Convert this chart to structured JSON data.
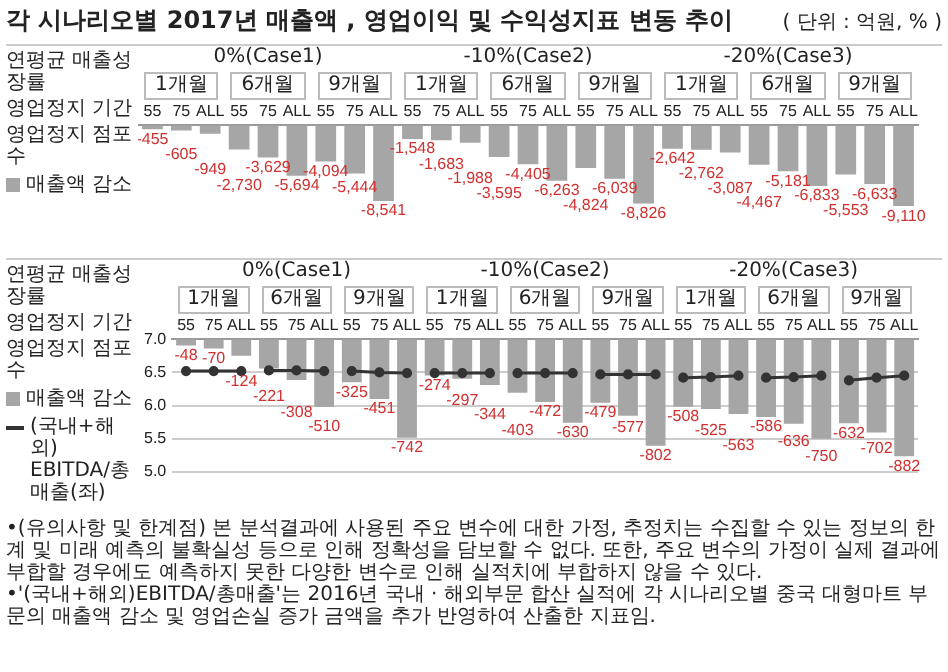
{
  "chart_data": [
    {
      "type": "bar",
      "title": "각 시나리오별 2017년 매출액 , 영업이익 및 수익성지표 변동 추이",
      "subtitle": "( 단위 : 억원, % )",
      "categories": [
        "55",
        "75",
        "ALL",
        "55",
        "75",
        "ALL",
        "55",
        "75",
        "ALL",
        "55",
        "75",
        "ALL",
        "55",
        "75",
        "ALL",
        "55",
        "75",
        "ALL",
        "55",
        "75",
        "ALL",
        "55",
        "75",
        "ALL",
        "55",
        "75",
        "ALL"
      ],
      "series": [
        {
          "name": "매출액 감소",
          "color": "#a6a6a6",
          "values": [
            -455,
            -605,
            -949,
            -2730,
            -3629,
            -5694,
            -4094,
            -5444,
            -8541,
            -1548,
            -1683,
            -1988,
            -3595,
            -4405,
            -6263,
            -4824,
            -6039,
            -8826,
            -2642,
            -2762,
            -3087,
            -4467,
            -5181,
            -6833,
            -5553,
            -6633,
            -9110
          ],
          "value_labels": [
            "-455",
            "-605",
            "-949",
            "-2,730",
            "-3,629",
            "-5,694",
            "-4,094",
            "-5,444",
            "-8,541",
            "-1,548",
            "-1,683",
            "-1,988",
            "-3,595",
            "-4,405",
            "-6,263",
            "-4,824",
            "-6,039",
            "-8,826",
            "-2,642",
            "-2,762",
            "-3,087",
            "-4,467",
            "-5,181",
            "-6,833",
            "-5,553",
            "-6,633",
            "-9,110"
          ]
        }
      ],
      "tick_labels": "x",
      "grid": false,
      "legend": "left",
      "annotations": [
        "0%(Case1)",
        "-10%(Case2)",
        "-20%(Case3)",
        "1개월",
        "6개월",
        "9개월",
        "1개월",
        "6개월",
        "9개월",
        "1개월",
        "6개월",
        "9개월",
        "연평균 매출성장률",
        "영업정지 기간",
        "영업정지 점포수"
      ]
    },
    {
      "type": "bar",
      "categories": [
        "55",
        "75",
        "ALL",
        "55",
        "75",
        "ALL",
        "55",
        "75",
        "ALL",
        "55",
        "75",
        "ALL",
        "55",
        "75",
        "ALL",
        "55",
        "75",
        "ALL",
        "55",
        "75",
        "ALL",
        "55",
        "75",
        "ALL",
        "55",
        "75",
        "ALL"
      ],
      "series": [
        {
          "name": "매출액 감소",
          "color": "#a6a6a6",
          "axis": "y2",
          "values": [
            -48,
            -70,
            -124,
            -221,
            -308,
            -510,
            -325,
            -451,
            -742,
            -274,
            -297,
            -344,
            -403,
            -472,
            -630,
            -479,
            -577,
            -802,
            -508,
            -525,
            -563,
            -586,
            -636,
            -750,
            -632,
            -702,
            -882
          ],
          "value_labels": [
            "-48",
            "-70",
            "-124",
            "-221",
            "-308",
            "-510",
            "-325",
            "-451",
            "-742",
            "-274",
            "-297",
            "-344",
            "-403",
            "-472",
            "-630",
            "-479",
            "-577",
            "-802",
            "-508",
            "-525",
            "-563",
            "-586",
            "-636",
            "-750",
            "-632",
            "-702",
            "-882"
          ]
        },
        {
          "name": "(국내+해외) EBITDA/총매출(좌)",
          "type": "line",
          "color": "#333333",
          "values": [
            6.52,
            6.52,
            6.52,
            6.53,
            6.53,
            6.52,
            6.52,
            6.5,
            6.49,
            6.49,
            6.49,
            6.49,
            6.49,
            6.49,
            6.49,
            6.47,
            6.47,
            6.47,
            6.42,
            6.43,
            6.45,
            6.42,
            6.43,
            6.45,
            6.38,
            6.42,
            6.45
          ]
        }
      ],
      "ylim": [
        5,
        7
      ],
      "yticks": [
        {
          "value": 5,
          "label": "5.0"
        },
        {
          "value": 5.5,
          "label": "5.5"
        },
        {
          "value": 6,
          "label": "6.0"
        },
        {
          "value": 6.5,
          "label": "6.5"
        },
        {
          "value": 7,
          "label": "7.0"
        }
      ],
      "grid": "y",
      "legend": "left",
      "marker": "circle",
      "annotations": [
        "0%(Case1)",
        "-10%(Case2)",
        "-20%(Case3)",
        "1개월",
        "6개월",
        "9개월",
        "1개월",
        "6개월",
        "9개월",
        "1개월",
        "6개월",
        "9개월",
        "연평균 매출성장률",
        "영업정지 기간",
        "영업정지 점포수",
        "•(유의사항 및 한계점) 본 분석결과에 사용된 주요 변수에 대한 가정, 추정치는 수집할 수 있는 정보의 한계 및 미래 예측의 불확실성 등으로 인해 정확성을 담보할 수 없다. 또한, 주요 변수의 가정이 실제 결과에 부합할 경우에도 예측하지 못한 다양한 변수로 인해 실적치에 부합하지 않을 수 있다.",
        "•'(국내+해외)EBITDA/총매출'는 2016년 국내 · 해외부문 합산 실적에 각 시나리오별 중국 대형마트 부문의 매출액 감소 및 영업손실 증가 금액을 추가 반영하여 산출한 지표임."
      ]
    }
  ]
}
